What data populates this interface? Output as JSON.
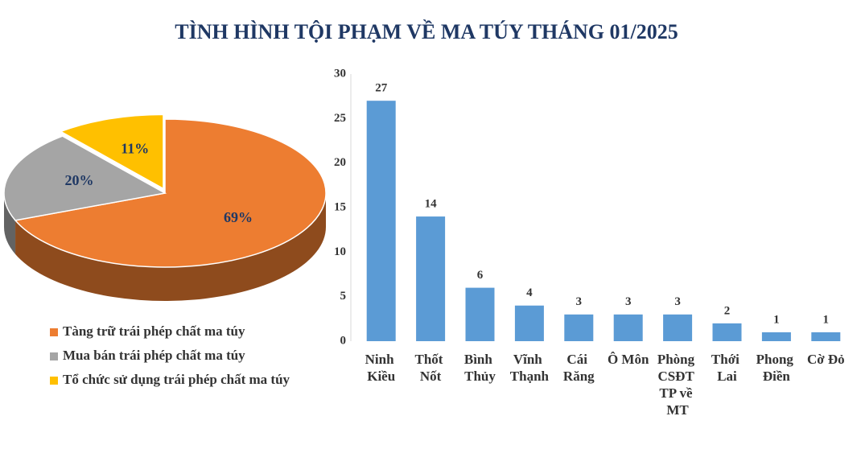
{
  "title": "TÌNH HÌNH TỘI PHẠM VỀ MA TÚY THÁNG 01/2025",
  "chart_data": [
    {
      "type": "pie",
      "categories": [
        "Tàng trữ trái phép chất ma túy",
        "Mua bán trái phép chất ma túy",
        "Tổ chức sử dụng trái phép chất ma túy"
      ],
      "values": [
        69,
        20,
        11
      ],
      "value_labels": [
        "69%",
        "20%",
        "11%"
      ],
      "colors": [
        "#ed7d31",
        "#a5a5a5",
        "#ffc000"
      ]
    },
    {
      "type": "bar",
      "categories": [
        "Ninh Kiều",
        "Thốt Nốt",
        "Bình Thủy",
        "Vĩnh Thạnh",
        "Cái Răng",
        "Ô Môn",
        "Phòng CSĐT TP về MT",
        "Thới Lai",
        "Phong Điền",
        "Cờ Đỏ"
      ],
      "values": [
        27,
        14,
        6,
        4,
        3,
        3,
        3,
        2,
        1,
        1
      ],
      "color": "#5b9bd5",
      "ylim": [
        0,
        30
      ],
      "yticks": [
        0,
        5,
        10,
        15,
        20,
        25,
        30
      ],
      "grid": false
    }
  ]
}
